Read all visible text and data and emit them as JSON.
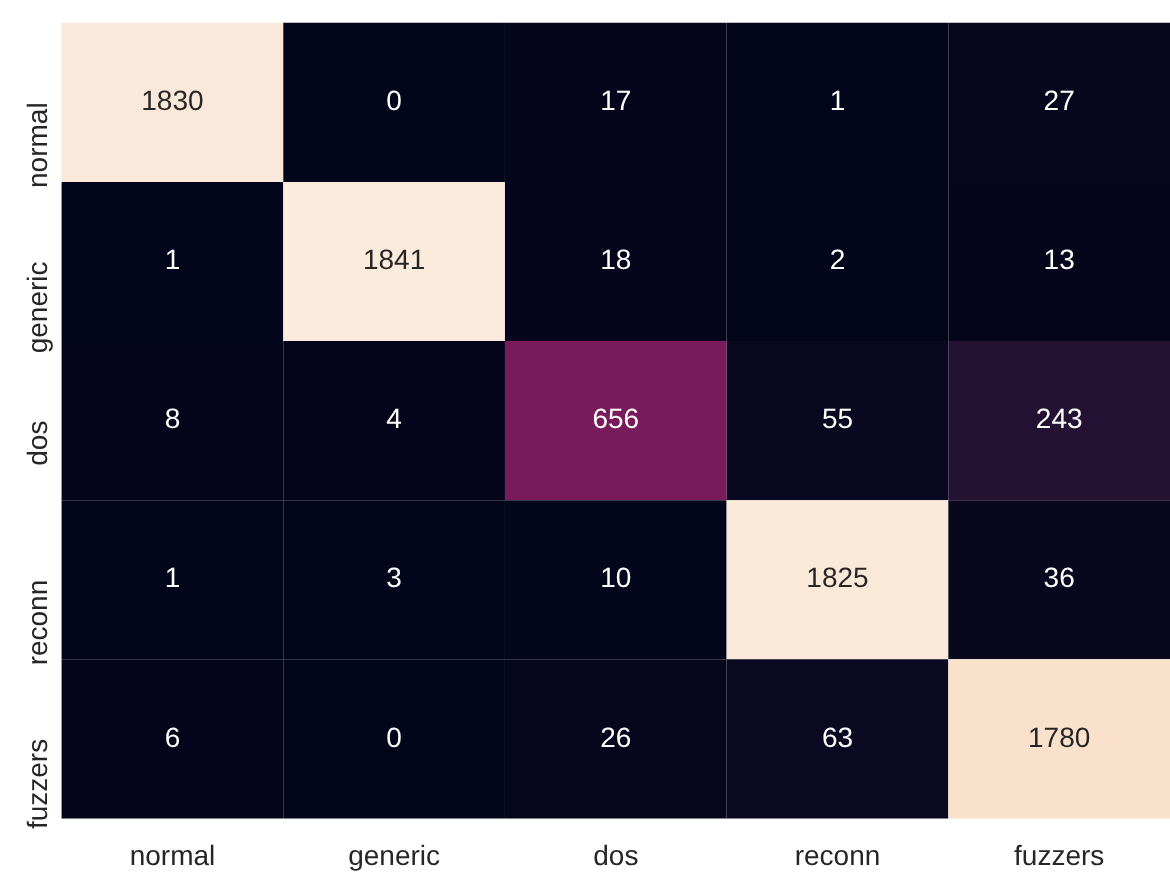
{
  "chart_data": {
    "type": "heatmap",
    "categories": [
      "normal",
      "generic",
      "dos",
      "reconn",
      "fuzzers"
    ],
    "y_categories": [
      "normal",
      "generic",
      "dos",
      "reconn",
      "fuzzers"
    ],
    "cells": [
      [
        1830,
        0,
        17,
        1,
        27
      ],
      [
        1,
        1841,
        18,
        2,
        13
      ],
      [
        8,
        4,
        656,
        55,
        243
      ],
      [
        1,
        3,
        10,
        1825,
        36
      ],
      [
        6,
        0,
        26,
        63,
        1780
      ]
    ],
    "data_labels": true
  }
}
